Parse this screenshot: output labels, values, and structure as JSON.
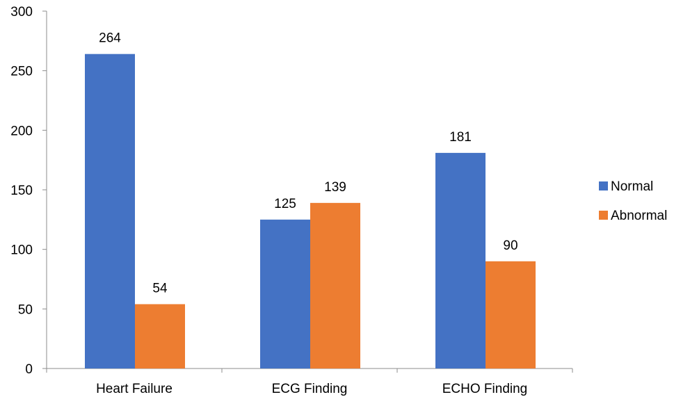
{
  "chart_data": {
    "type": "bar",
    "categories": [
      "Heart Failure",
      "ECG Finding",
      "ECHO Finding"
    ],
    "series": [
      {
        "name": "Normal",
        "values": [
          264,
          125,
          181
        ],
        "color": "#4472C4"
      },
      {
        "name": "Abnormal",
        "values": [
          54,
          139,
          90
        ],
        "color": "#ED7D31"
      }
    ],
    "title": "",
    "xlabel": "",
    "ylabel": "",
    "ylim": [
      0,
      300
    ],
    "yticks": [
      0,
      50,
      100,
      150,
      200,
      250,
      300
    ],
    "grid": false,
    "legend_position": "right",
    "data_labels": true
  }
}
